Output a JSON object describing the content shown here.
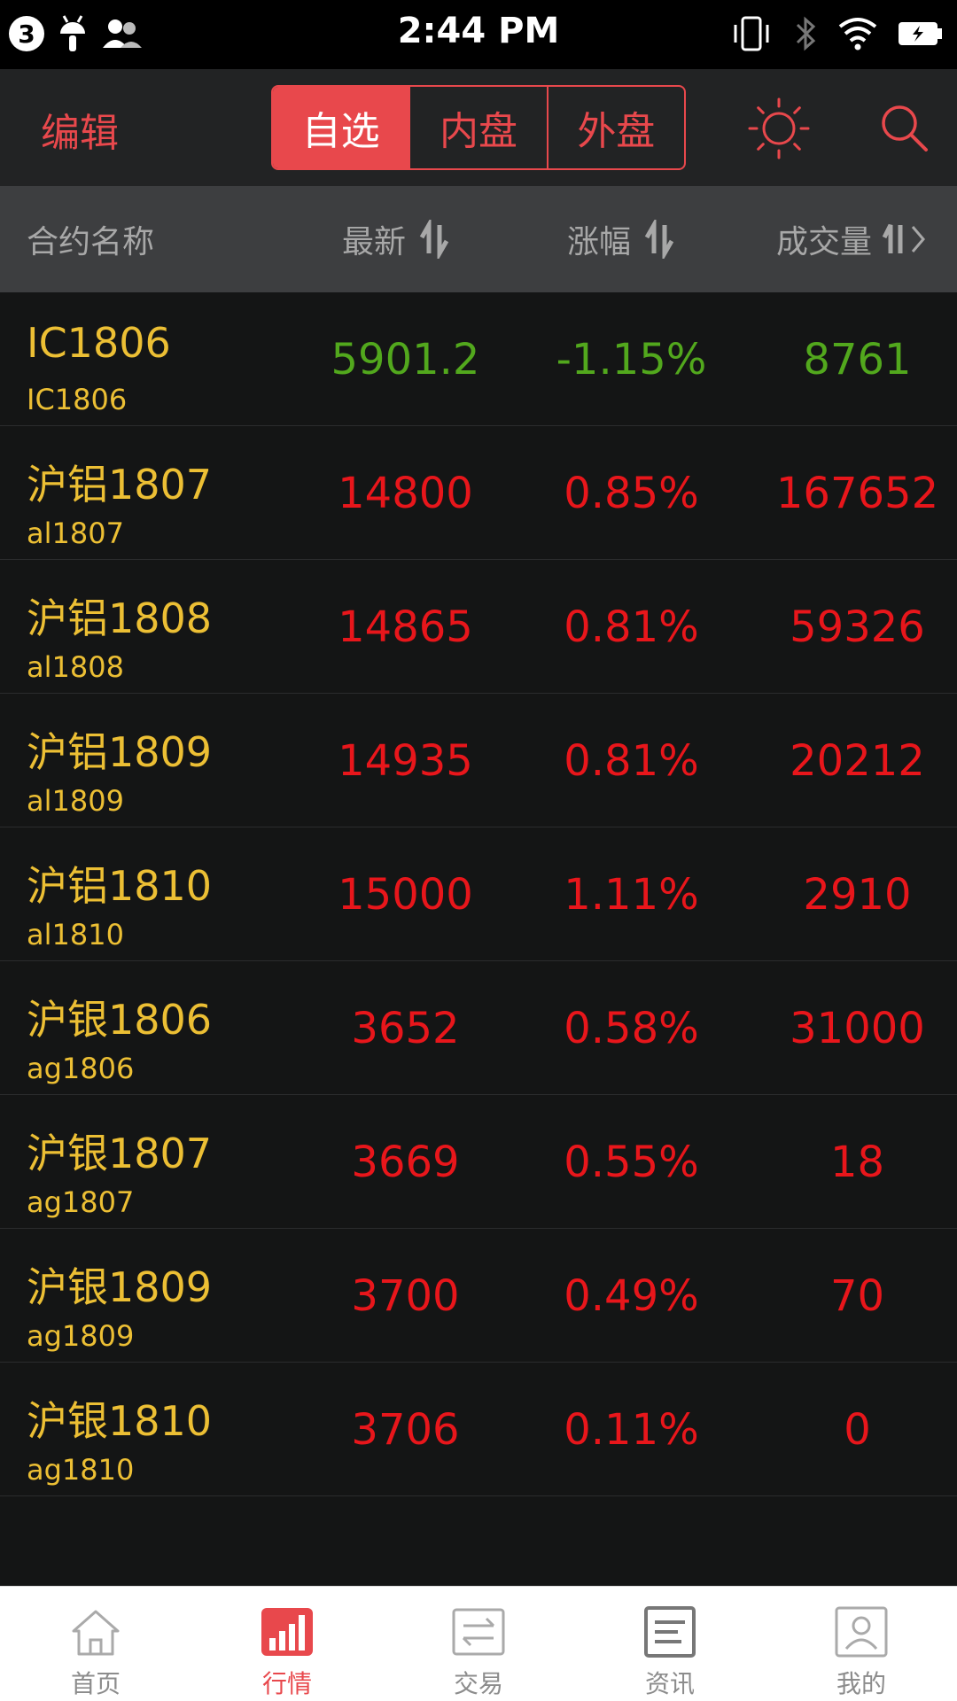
{
  "status_bar": {
    "notification_count": "3",
    "time": "2:44 PM"
  },
  "header": {
    "edit_label": "编辑",
    "segments": [
      {
        "label": "自选",
        "active": true
      },
      {
        "label": "内盘",
        "active": false
      },
      {
        "label": "外盘",
        "active": false
      }
    ]
  },
  "columns": {
    "name": "合约名称",
    "latest": "最新",
    "change": "涨幅",
    "volume": "成交量"
  },
  "colors": {
    "accent": "#e8484c",
    "name": "#ecbf34",
    "up": "#e8161b",
    "down": "#52a81d"
  },
  "rows": [
    {
      "name": "IC1806",
      "code": "IC1806",
      "latest": "5901.2",
      "change": "-1.15%",
      "volume": "8761",
      "trend": "down"
    },
    {
      "name": "沪铝1807",
      "code": "al1807",
      "latest": "14800",
      "change": "0.85%",
      "volume": "167652",
      "trend": "up"
    },
    {
      "name": "沪铝1808",
      "code": "al1808",
      "latest": "14865",
      "change": "0.81%",
      "volume": "59326",
      "trend": "up"
    },
    {
      "name": "沪铝1809",
      "code": "al1809",
      "latest": "14935",
      "change": "0.81%",
      "volume": "20212",
      "trend": "up"
    },
    {
      "name": "沪铝1810",
      "code": "al1810",
      "latest": "15000",
      "change": "1.11%",
      "volume": "2910",
      "trend": "up"
    },
    {
      "name": "沪银1806",
      "code": "ag1806",
      "latest": "3652",
      "change": "0.58%",
      "volume": "31000",
      "trend": "up"
    },
    {
      "name": "沪银1807",
      "code": "ag1807",
      "latest": "3669",
      "change": "0.55%",
      "volume": "18",
      "trend": "up"
    },
    {
      "name": "沪银1809",
      "code": "ag1809",
      "latest": "3700",
      "change": "0.49%",
      "volume": "70",
      "trend": "up"
    },
    {
      "name": "沪银1810",
      "code": "ag1810",
      "latest": "3706",
      "change": "0.11%",
      "volume": "0",
      "trend": "up"
    }
  ],
  "tabs": [
    {
      "label": "首页",
      "icon": "home-icon",
      "active": false
    },
    {
      "label": "行情",
      "icon": "market-chart-icon",
      "active": true
    },
    {
      "label": "交易",
      "icon": "trade-icon",
      "active": false
    },
    {
      "label": "资讯",
      "icon": "news-icon",
      "active": false
    },
    {
      "label": "我的",
      "icon": "profile-icon",
      "active": false
    }
  ]
}
